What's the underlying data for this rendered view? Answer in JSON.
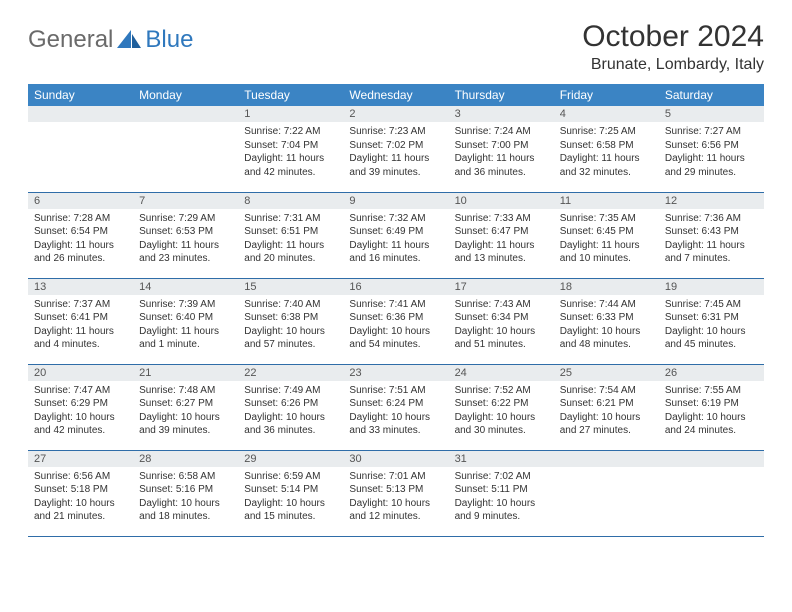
{
  "logo": {
    "general": "General",
    "blue": "Blue"
  },
  "title": "October 2024",
  "location": "Brunate, Lombardy, Italy",
  "colors": {
    "header_bg": "#3b84c4",
    "header_text": "#ffffff",
    "daynum_bg": "#e9ecee",
    "row_border": "#2f6da8",
    "logo_gray": "#6a6a6a",
    "logo_blue": "#2f78bd",
    "body_text": "#333333"
  },
  "day_names": [
    "Sunday",
    "Monday",
    "Tuesday",
    "Wednesday",
    "Thursday",
    "Friday",
    "Saturday"
  ],
  "weeks": [
    [
      {
        "n": "",
        "sr": "",
        "ss": "",
        "dl": ""
      },
      {
        "n": "",
        "sr": "",
        "ss": "",
        "dl": ""
      },
      {
        "n": "1",
        "sr": "Sunrise: 7:22 AM",
        "ss": "Sunset: 7:04 PM",
        "dl": "Daylight: 11 hours and 42 minutes."
      },
      {
        "n": "2",
        "sr": "Sunrise: 7:23 AM",
        "ss": "Sunset: 7:02 PM",
        "dl": "Daylight: 11 hours and 39 minutes."
      },
      {
        "n": "3",
        "sr": "Sunrise: 7:24 AM",
        "ss": "Sunset: 7:00 PM",
        "dl": "Daylight: 11 hours and 36 minutes."
      },
      {
        "n": "4",
        "sr": "Sunrise: 7:25 AM",
        "ss": "Sunset: 6:58 PM",
        "dl": "Daylight: 11 hours and 32 minutes."
      },
      {
        "n": "5",
        "sr": "Sunrise: 7:27 AM",
        "ss": "Sunset: 6:56 PM",
        "dl": "Daylight: 11 hours and 29 minutes."
      }
    ],
    [
      {
        "n": "6",
        "sr": "Sunrise: 7:28 AM",
        "ss": "Sunset: 6:54 PM",
        "dl": "Daylight: 11 hours and 26 minutes."
      },
      {
        "n": "7",
        "sr": "Sunrise: 7:29 AM",
        "ss": "Sunset: 6:53 PM",
        "dl": "Daylight: 11 hours and 23 minutes."
      },
      {
        "n": "8",
        "sr": "Sunrise: 7:31 AM",
        "ss": "Sunset: 6:51 PM",
        "dl": "Daylight: 11 hours and 20 minutes."
      },
      {
        "n": "9",
        "sr": "Sunrise: 7:32 AM",
        "ss": "Sunset: 6:49 PM",
        "dl": "Daylight: 11 hours and 16 minutes."
      },
      {
        "n": "10",
        "sr": "Sunrise: 7:33 AM",
        "ss": "Sunset: 6:47 PM",
        "dl": "Daylight: 11 hours and 13 minutes."
      },
      {
        "n": "11",
        "sr": "Sunrise: 7:35 AM",
        "ss": "Sunset: 6:45 PM",
        "dl": "Daylight: 11 hours and 10 minutes."
      },
      {
        "n": "12",
        "sr": "Sunrise: 7:36 AM",
        "ss": "Sunset: 6:43 PM",
        "dl": "Daylight: 11 hours and 7 minutes."
      }
    ],
    [
      {
        "n": "13",
        "sr": "Sunrise: 7:37 AM",
        "ss": "Sunset: 6:41 PM",
        "dl": "Daylight: 11 hours and 4 minutes."
      },
      {
        "n": "14",
        "sr": "Sunrise: 7:39 AM",
        "ss": "Sunset: 6:40 PM",
        "dl": "Daylight: 11 hours and 1 minute."
      },
      {
        "n": "15",
        "sr": "Sunrise: 7:40 AM",
        "ss": "Sunset: 6:38 PM",
        "dl": "Daylight: 10 hours and 57 minutes."
      },
      {
        "n": "16",
        "sr": "Sunrise: 7:41 AM",
        "ss": "Sunset: 6:36 PM",
        "dl": "Daylight: 10 hours and 54 minutes."
      },
      {
        "n": "17",
        "sr": "Sunrise: 7:43 AM",
        "ss": "Sunset: 6:34 PM",
        "dl": "Daylight: 10 hours and 51 minutes."
      },
      {
        "n": "18",
        "sr": "Sunrise: 7:44 AM",
        "ss": "Sunset: 6:33 PM",
        "dl": "Daylight: 10 hours and 48 minutes."
      },
      {
        "n": "19",
        "sr": "Sunrise: 7:45 AM",
        "ss": "Sunset: 6:31 PM",
        "dl": "Daylight: 10 hours and 45 minutes."
      }
    ],
    [
      {
        "n": "20",
        "sr": "Sunrise: 7:47 AM",
        "ss": "Sunset: 6:29 PM",
        "dl": "Daylight: 10 hours and 42 minutes."
      },
      {
        "n": "21",
        "sr": "Sunrise: 7:48 AM",
        "ss": "Sunset: 6:27 PM",
        "dl": "Daylight: 10 hours and 39 minutes."
      },
      {
        "n": "22",
        "sr": "Sunrise: 7:49 AM",
        "ss": "Sunset: 6:26 PM",
        "dl": "Daylight: 10 hours and 36 minutes."
      },
      {
        "n": "23",
        "sr": "Sunrise: 7:51 AM",
        "ss": "Sunset: 6:24 PM",
        "dl": "Daylight: 10 hours and 33 minutes."
      },
      {
        "n": "24",
        "sr": "Sunrise: 7:52 AM",
        "ss": "Sunset: 6:22 PM",
        "dl": "Daylight: 10 hours and 30 minutes."
      },
      {
        "n": "25",
        "sr": "Sunrise: 7:54 AM",
        "ss": "Sunset: 6:21 PM",
        "dl": "Daylight: 10 hours and 27 minutes."
      },
      {
        "n": "26",
        "sr": "Sunrise: 7:55 AM",
        "ss": "Sunset: 6:19 PM",
        "dl": "Daylight: 10 hours and 24 minutes."
      }
    ],
    [
      {
        "n": "27",
        "sr": "Sunrise: 6:56 AM",
        "ss": "Sunset: 5:18 PM",
        "dl": "Daylight: 10 hours and 21 minutes."
      },
      {
        "n": "28",
        "sr": "Sunrise: 6:58 AM",
        "ss": "Sunset: 5:16 PM",
        "dl": "Daylight: 10 hours and 18 minutes."
      },
      {
        "n": "29",
        "sr": "Sunrise: 6:59 AM",
        "ss": "Sunset: 5:14 PM",
        "dl": "Daylight: 10 hours and 15 minutes."
      },
      {
        "n": "30",
        "sr": "Sunrise: 7:01 AM",
        "ss": "Sunset: 5:13 PM",
        "dl": "Daylight: 10 hours and 12 minutes."
      },
      {
        "n": "31",
        "sr": "Sunrise: 7:02 AM",
        "ss": "Sunset: 5:11 PM",
        "dl": "Daylight: 10 hours and 9 minutes."
      },
      {
        "n": "",
        "sr": "",
        "ss": "",
        "dl": ""
      },
      {
        "n": "",
        "sr": "",
        "ss": "",
        "dl": ""
      }
    ]
  ]
}
